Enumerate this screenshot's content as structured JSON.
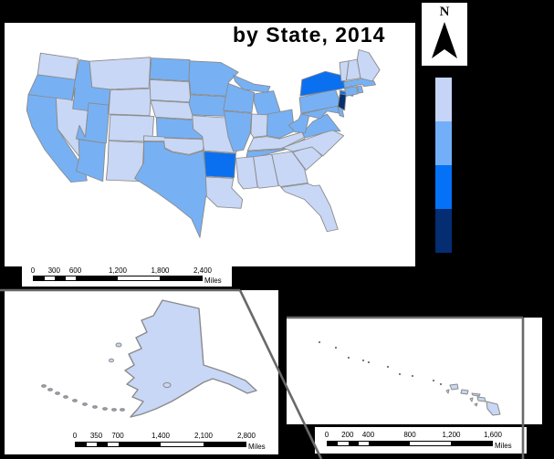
{
  "title": "by State, 2014",
  "north_arrow": {
    "label": "N"
  },
  "colors": {
    "page_bg": "#000000",
    "panel_bg": "#ffffff",
    "state_border": "#8a8a8a",
    "leader_line": "#696969",
    "classes": [
      "#c8d7f5",
      "#77b1f4",
      "#0a70ef",
      "#08306b"
    ]
  },
  "legend": {
    "swatches": [
      {
        "class": 1,
        "color": "#c5d4f7"
      },
      {
        "class": 2,
        "color": "#72aff8"
      },
      {
        "class": 3,
        "color": "#0471f6"
      },
      {
        "class": 4,
        "color": "#042d72"
      }
    ]
  },
  "map": {
    "states": [
      {
        "id": "WA",
        "name": "Washington",
        "class": 1
      },
      {
        "id": "OR",
        "name": "Oregon",
        "class": 2
      },
      {
        "id": "CA",
        "name": "California",
        "class": 2
      },
      {
        "id": "NV",
        "name": "Nevada",
        "class": 1
      },
      {
        "id": "ID",
        "name": "Idaho",
        "class": 2
      },
      {
        "id": "MT",
        "name": "Montana",
        "class": 1
      },
      {
        "id": "WY",
        "name": "Wyoming",
        "class": 1
      },
      {
        "id": "UT",
        "name": "Utah",
        "class": 2
      },
      {
        "id": "CO",
        "name": "Colorado",
        "class": 1
      },
      {
        "id": "AZ",
        "name": "Arizona",
        "class": 2
      },
      {
        "id": "NM",
        "name": "New Mexico",
        "class": 1
      },
      {
        "id": "ND",
        "name": "North Dakota",
        "class": 2
      },
      {
        "id": "SD",
        "name": "South Dakota",
        "class": 1
      },
      {
        "id": "NE",
        "name": "Nebraska",
        "class": 1
      },
      {
        "id": "KS",
        "name": "Kansas",
        "class": 2
      },
      {
        "id": "OK",
        "name": "Oklahoma",
        "class": 1
      },
      {
        "id": "TX",
        "name": "Texas",
        "class": 2
      },
      {
        "id": "MN",
        "name": "Minnesota",
        "class": 2
      },
      {
        "id": "IA",
        "name": "Iowa",
        "class": 2
      },
      {
        "id": "MO",
        "name": "Missouri",
        "class": 1
      },
      {
        "id": "AR",
        "name": "Arkansas",
        "class": 3
      },
      {
        "id": "LA",
        "name": "Louisiana",
        "class": 1
      },
      {
        "id": "WI",
        "name": "Wisconsin",
        "class": 2
      },
      {
        "id": "IL",
        "name": "Illinois",
        "class": 2
      },
      {
        "id": "MI",
        "name": "Michigan",
        "class": 2
      },
      {
        "id": "IN",
        "name": "Indiana",
        "class": 1
      },
      {
        "id": "OH",
        "name": "Ohio",
        "class": 2
      },
      {
        "id": "KY",
        "name": "Kentucky",
        "class": 1
      },
      {
        "id": "TN",
        "name": "Tennessee",
        "class": 2
      },
      {
        "id": "MS",
        "name": "Mississippi",
        "class": 1
      },
      {
        "id": "AL",
        "name": "Alabama",
        "class": 1
      },
      {
        "id": "GA",
        "name": "Georgia",
        "class": 1
      },
      {
        "id": "FL",
        "name": "Florida",
        "class": 1
      },
      {
        "id": "SC",
        "name": "South Carolina",
        "class": 1
      },
      {
        "id": "NC",
        "name": "North Carolina",
        "class": 1
      },
      {
        "id": "VA",
        "name": "Virginia",
        "class": 2
      },
      {
        "id": "WV",
        "name": "West Virginia",
        "class": 2
      },
      {
        "id": "MD",
        "name": "Maryland",
        "class": 2
      },
      {
        "id": "DE",
        "name": "Delaware",
        "class": 2
      },
      {
        "id": "PA",
        "name": "Pennsylvania",
        "class": 2
      },
      {
        "id": "NJ",
        "name": "New Jersey",
        "class": 4
      },
      {
        "id": "NY",
        "name": "New York",
        "class": 3
      },
      {
        "id": "CT",
        "name": "Connecticut",
        "class": 2
      },
      {
        "id": "RI",
        "name": "Rhode Island",
        "class": 2
      },
      {
        "id": "MA",
        "name": "Massachusetts",
        "class": 2
      },
      {
        "id": "VT",
        "name": "Vermont",
        "class": 1
      },
      {
        "id": "NH",
        "name": "New Hampshire",
        "class": 1
      },
      {
        "id": "ME",
        "name": "Maine",
        "class": 1
      },
      {
        "id": "AK",
        "name": "Alaska",
        "class": 1
      },
      {
        "id": "HI",
        "name": "Hawaii",
        "class": 1
      }
    ]
  },
  "scalebars": {
    "main": {
      "ticks": [
        "0",
        "300",
        "600",
        "1,200",
        "1,800",
        "2,400"
      ],
      "unit": "Miles"
    },
    "alaska": {
      "ticks": [
        "0",
        "350",
        "700",
        "1,400",
        "2,100",
        "2,800"
      ],
      "unit": "Miles"
    },
    "hawaii": {
      "ticks": [
        "0",
        "200",
        "400",
        "800",
        "1,200",
        "1,600"
      ],
      "unit": "Miles"
    }
  }
}
